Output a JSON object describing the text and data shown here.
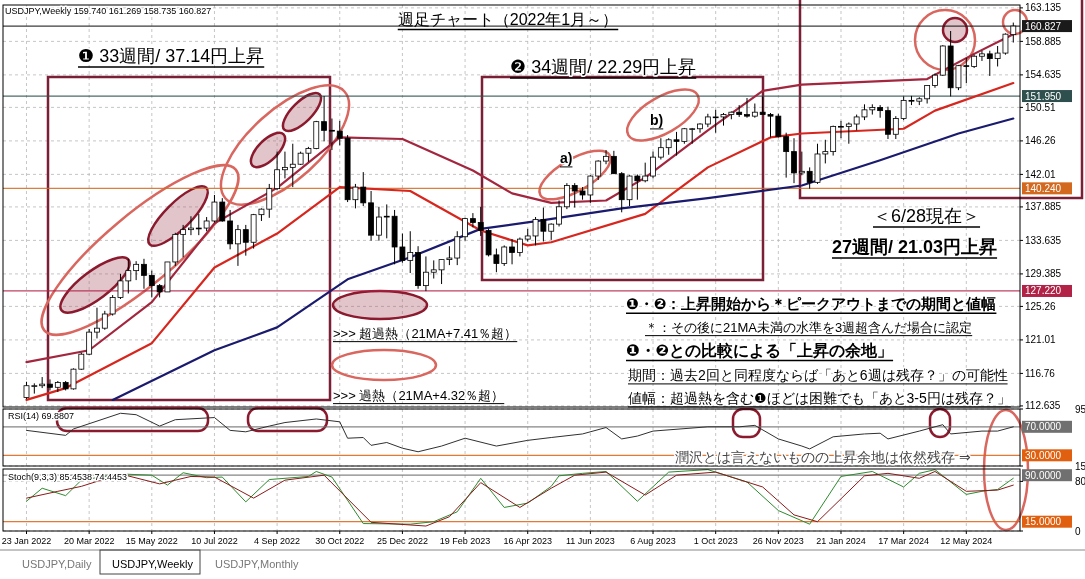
{
  "chart_data": [
    {
      "type": "candlestick",
      "title": "週足チャート（2022年1月～）",
      "grid": true,
      "tick_labels": "y",
      "xlim": [
        "2022-01-02",
        "2024-06-29"
      ],
      "xticks": [
        {
          "value": "2022-01-23",
          "label": null
        },
        {
          "value": "2022-03-20",
          "label": null
        },
        {
          "value": "2022-05-15",
          "label": null
        },
        {
          "value": "2022-07-10",
          "label": null
        },
        {
          "value": "2022-09-04",
          "label": null
        },
        {
          "value": "2022-10-30",
          "label": null
        },
        {
          "value": "2022-12-25",
          "label": null
        },
        {
          "value": "2023-02-19",
          "label": null
        },
        {
          "value": "2023-04-16",
          "label": null
        },
        {
          "value": "2023-06-11",
          "label": null
        },
        {
          "value": "2023-08-06",
          "label": null
        },
        {
          "value": "2023-10-01",
          "label": null
        },
        {
          "value": "2023-11-26",
          "label": null
        },
        {
          "value": "2024-01-21",
          "label": null
        },
        {
          "value": "2024-03-17",
          "label": null
        },
        {
          "value": "2024-05-12",
          "label": null
        }
      ],
      "ylim": [
        112.5,
        163.5
      ],
      "yticks": [
        163.135,
        158.885,
        154.635,
        150.51,
        146.26,
        142.01,
        137.885,
        133.635,
        129.385,
        125.26,
        121.01,
        116.76,
        112.635
      ],
      "ref_lines": [
        {
          "axis": "y",
          "value": 160.827,
          "label": "160.827",
          "color": "#1a1a1a"
        },
        {
          "axis": "y",
          "value": 151.95,
          "label": "151.950",
          "color": "#2f4f4f"
        },
        {
          "axis": "y",
          "value": 140.24,
          "label": "140.240",
          "color": "#d2691e"
        },
        {
          "axis": "y",
          "value": 127.22,
          "label": "127.220",
          "color": "#b22247"
        }
      ],
      "x": [
        "2022-01-23",
        "2022-01-30",
        "2022-02-06",
        "2022-02-13",
        "2022-02-20",
        "2022-02-27",
        "2022-03-06",
        "2022-03-13",
        "2022-03-20",
        "2022-03-27",
        "2022-04-03",
        "2022-04-10",
        "2022-04-17",
        "2022-04-24",
        "2022-05-01",
        "2022-05-08",
        "2022-05-15",
        "2022-05-22",
        "2022-05-29",
        "2022-06-05",
        "2022-06-12",
        "2022-06-19",
        "2022-06-26",
        "2022-07-03",
        "2022-07-10",
        "2022-07-17",
        "2022-07-24",
        "2022-07-31",
        "2022-08-07",
        "2022-08-14",
        "2022-08-21",
        "2022-08-28",
        "2022-09-04",
        "2022-09-11",
        "2022-09-18",
        "2022-09-25",
        "2022-10-02",
        "2022-10-09",
        "2022-10-16",
        "2022-10-23",
        "2022-10-30",
        "2022-11-06",
        "2022-11-13",
        "2022-11-20",
        "2022-11-27",
        "2022-12-04",
        "2022-12-11",
        "2022-12-18",
        "2022-12-25",
        "2023-01-01",
        "2023-01-08",
        "2023-01-15",
        "2023-01-22",
        "2023-01-29",
        "2023-02-05",
        "2023-02-12",
        "2023-02-19",
        "2023-02-26",
        "2023-03-05",
        "2023-03-12",
        "2023-03-19",
        "2023-03-26",
        "2023-04-02",
        "2023-04-09",
        "2023-04-16",
        "2023-04-23",
        "2023-04-30",
        "2023-05-07",
        "2023-05-14",
        "2023-05-21",
        "2023-05-28",
        "2023-06-04",
        "2023-06-11",
        "2023-06-18",
        "2023-06-25",
        "2023-07-02",
        "2023-07-09",
        "2023-07-16",
        "2023-07-23",
        "2023-07-30",
        "2023-08-06",
        "2023-08-13",
        "2023-08-20",
        "2023-08-27",
        "2023-09-03",
        "2023-09-10",
        "2023-09-17",
        "2023-09-24",
        "2023-10-01",
        "2023-10-08",
        "2023-10-15",
        "2023-10-22",
        "2023-10-29",
        "2023-11-05",
        "2023-11-12",
        "2023-11-19",
        "2023-11-26",
        "2023-12-03",
        "2023-12-10",
        "2023-12-17",
        "2023-12-24",
        "2023-12-31",
        "2024-01-07",
        "2024-01-14",
        "2024-01-21",
        "2024-01-28",
        "2024-02-04",
        "2024-02-11",
        "2024-02-18",
        "2024-02-25",
        "2024-03-03",
        "2024-03-10",
        "2024-03-17",
        "2024-03-24",
        "2024-03-31",
        "2024-04-07",
        "2024-04-14",
        "2024-04-21",
        "2024-04-28",
        "2024-05-05",
        "2024-05-12",
        "2024-05-19",
        "2024-05-26",
        "2024-06-02",
        "2024-06-09",
        "2024-06-16",
        "2024-06-23"
      ],
      "ohlc": [
        [
          113.7,
          115.7,
          113.5,
          115.2
        ],
        [
          115.2,
          115.5,
          114.2,
          115.2
        ],
        [
          115.2,
          116.3,
          114.9,
          115.4
        ],
        [
          115.4,
          116.0,
          114.6,
          115.0
        ],
        [
          115.0,
          115.8,
          114.4,
          115.6
        ],
        [
          115.6,
          115.8,
          114.6,
          114.8
        ],
        [
          114.8,
          117.4,
          114.7,
          117.3
        ],
        [
          117.3,
          119.4,
          117.2,
          119.2
        ],
        [
          119.2,
          122.4,
          119.1,
          122.0
        ],
        [
          122.0,
          125.1,
          121.2,
          122.5
        ],
        [
          122.5,
          124.7,
          122.3,
          124.3
        ],
        [
          124.3,
          126.7,
          124.1,
          126.4
        ],
        [
          126.4,
          129.4,
          126.2,
          128.5
        ],
        [
          128.5,
          131.3,
          126.9,
          129.8
        ],
        [
          129.8,
          131.0,
          128.6,
          130.6
        ],
        [
          130.6,
          131.3,
          127.5,
          129.2
        ],
        [
          129.2,
          129.8,
          126.4,
          127.9
        ],
        [
          127.9,
          128.1,
          126.4,
          127.1
        ],
        [
          127.1,
          130.9,
          127.1,
          130.9
        ],
        [
          130.9,
          134.6,
          130.4,
          134.4
        ],
        [
          134.4,
          135.6,
          131.5,
          135.0
        ],
        [
          135.0,
          136.7,
          134.3,
          135.2
        ],
        [
          135.2,
          137.0,
          134.3,
          135.2
        ],
        [
          135.2,
          136.6,
          134.8,
          136.1
        ],
        [
          136.1,
          139.4,
          135.9,
          138.5
        ],
        [
          138.5,
          139.0,
          136.0,
          136.1
        ],
        [
          136.1,
          137.5,
          132.5,
          133.2
        ],
        [
          133.2,
          135.6,
          130.4,
          135.0
        ],
        [
          135.0,
          135.6,
          131.7,
          133.4
        ],
        [
          133.4,
          137.0,
          132.6,
          136.9
        ],
        [
          136.9,
          137.7,
          136.1,
          137.6
        ],
        [
          137.6,
          140.8,
          136.5,
          140.2
        ],
        [
          140.2,
          144.9,
          140.0,
          142.6
        ],
        [
          142.6,
          144.9,
          141.5,
          142.9
        ],
        [
          142.9,
          145.9,
          140.4,
          143.3
        ],
        [
          143.3,
          144.9,
          143.2,
          144.7
        ],
        [
          144.7,
          145.5,
          143.6,
          145.3
        ],
        [
          145.3,
          148.8,
          145.2,
          148.7
        ],
        [
          148.7,
          151.95,
          146.2,
          147.6
        ],
        [
          147.6,
          149.1,
          145.1,
          147.5
        ],
        [
          147.5,
          148.8,
          145.7,
          146.6
        ],
        [
          146.6,
          147.0,
          138.5,
          138.8
        ],
        [
          138.8,
          140.8,
          137.7,
          140.4
        ],
        [
          140.4,
          142.3,
          138.0,
          138.4
        ],
        [
          138.4,
          139.9,
          133.6,
          134.3
        ],
        [
          134.3,
          137.9,
          133.6,
          136.6
        ],
        [
          136.6,
          138.2,
          133.9,
          136.7
        ],
        [
          136.7,
          137.5,
          130.6,
          132.8
        ],
        [
          132.8,
          134.5,
          130.8,
          131.1
        ],
        [
          131.1,
          134.8,
          129.5,
          132.1
        ],
        [
          132.1,
          132.9,
          127.5,
          127.9
        ],
        [
          127.9,
          131.6,
          127.2,
          129.6
        ],
        [
          129.6,
          131.1,
          128.8,
          129.9
        ],
        [
          129.9,
          131.2,
          128.1,
          131.2
        ],
        [
          131.2,
          132.9,
          130.5,
          131.4
        ],
        [
          131.4,
          134.8,
          130.5,
          134.1
        ],
        [
          134.1,
          136.5,
          133.6,
          136.4
        ],
        [
          136.4,
          137.1,
          135.3,
          135.9
        ],
        [
          135.9,
          137.9,
          134.2,
          134.9
        ],
        [
          134.9,
          135.1,
          131.6,
          131.8
        ],
        [
          131.8,
          132.6,
          129.6,
          130.7
        ],
        [
          130.7,
          133.0,
          130.4,
          132.8
        ],
        [
          132.8,
          133.8,
          130.6,
          132.1
        ],
        [
          132.1,
          134.0,
          131.6,
          133.8
        ],
        [
          133.8,
          135.1,
          133.5,
          134.2
        ],
        [
          134.2,
          136.6,
          133.0,
          136.3
        ],
        [
          136.3,
          137.8,
          133.5,
          134.8
        ],
        [
          134.8,
          135.8,
          133.7,
          135.7
        ],
        [
          135.7,
          138.7,
          135.4,
          137.9
        ],
        [
          137.9,
          140.9,
          137.6,
          140.6
        ],
        [
          140.6,
          140.9,
          137.8,
          139.9
        ],
        [
          139.9,
          140.4,
          138.8,
          139.4
        ],
        [
          139.4,
          141.9,
          138.4,
          141.8
        ],
        [
          141.8,
          143.8,
          141.3,
          143.7
        ],
        [
          143.7,
          145.1,
          143.3,
          144.3
        ],
        [
          144.3,
          145.0,
          142.1,
          142.1
        ],
        [
          142.1,
          142.3,
          137.2,
          138.8
        ],
        [
          138.8,
          141.9,
          138.0,
          141.8
        ],
        [
          141.8,
          142.0,
          138.8,
          141.2
        ],
        [
          141.2,
          143.5,
          141.0,
          141.8
        ],
        [
          141.8,
          144.9,
          141.5,
          144.2
        ],
        [
          144.2,
          146.6,
          143.9,
          145.4
        ],
        [
          145.4,
          146.6,
          144.5,
          146.4
        ],
        [
          146.4,
          147.4,
          144.4,
          146.2
        ],
        [
          146.2,
          147.9,
          145.9,
          147.8
        ],
        [
          147.8,
          147.9,
          145.9,
          147.8
        ],
        [
          147.8,
          148.5,
          147.3,
          148.4
        ],
        [
          148.4,
          149.7,
          148.0,
          149.3
        ],
        [
          149.3,
          150.2,
          147.3,
          149.3
        ],
        [
          149.3,
          149.8,
          148.2,
          149.6
        ],
        [
          149.6,
          150.0,
          149.0,
          149.9
        ],
        [
          149.9,
          150.8,
          149.3,
          149.6
        ],
        [
          149.6,
          151.7,
          149.2,
          149.4
        ],
        [
          149.4,
          151.0,
          149.2,
          149.9
        ],
        [
          149.9,
          151.9,
          149.6,
          149.6
        ],
        [
          149.6,
          149.8,
          146.7,
          149.4
        ],
        [
          149.4,
          149.7,
          146.7,
          146.8
        ],
        [
          146.8,
          147.3,
          141.6,
          144.9
        ],
        [
          144.9,
          146.6,
          140.9,
          142.2
        ],
        [
          142.2,
          144.9,
          141.9,
          142.4
        ],
        [
          142.4,
          142.9,
          140.2,
          141.0
        ],
        [
          141.0,
          145.9,
          140.8,
          144.6
        ],
        [
          144.6,
          146.4,
          143.4,
          144.9
        ],
        [
          144.9,
          148.2,
          144.4,
          148.1
        ],
        [
          148.1,
          148.8,
          146.6,
          148.1
        ],
        [
          148.1,
          148.6,
          145.9,
          148.4
        ],
        [
          148.4,
          149.6,
          147.6,
          149.3
        ],
        [
          149.3,
          150.9,
          148.9,
          150.2
        ],
        [
          150.2,
          150.9,
          149.6,
          150.5
        ],
        [
          150.5,
          150.8,
          149.2,
          150.1
        ],
        [
          150.1,
          150.6,
          146.5,
          147.1
        ],
        [
          147.1,
          149.4,
          146.5,
          149.1
        ],
        [
          149.1,
          151.9,
          148.9,
          151.4
        ],
        [
          151.4,
          151.97,
          150.8,
          151.3
        ],
        [
          151.3,
          151.8,
          150.8,
          151.6
        ],
        [
          151.6,
          153.3,
          151.0,
          153.3
        ],
        [
          153.3,
          154.8,
          153.0,
          154.6
        ],
        [
          154.6,
          158.4,
          154.5,
          158.3
        ],
        [
          158.3,
          160.2,
          151.9,
          153.0
        ],
        [
          153.0,
          155.9,
          152.7,
          155.8
        ],
        [
          155.8,
          156.8,
          153.6,
          155.7
        ],
        [
          155.7,
          157.2,
          155.5,
          157.0
        ],
        [
          157.0,
          157.7,
          156.4,
          157.3
        ],
        [
          157.3,
          157.7,
          154.5,
          156.7
        ],
        [
          156.7,
          158.3,
          155.7,
          157.4
        ],
        [
          157.4,
          159.9,
          157.2,
          159.8
        ],
        [
          159.74,
          161.269,
          158.735,
          160.827
        ]
      ],
      "series": [
        {
          "type": "line",
          "color": "#a3263f",
          "x": [
            "2022-01-23",
            "2022-03-20",
            "2022-05-15",
            "2022-07-10",
            "2022-09-04",
            "2022-10-30",
            "2022-12-25",
            "2023-02-26",
            "2023-04-02",
            "2023-05-07",
            "2023-06-25",
            "2023-07-30",
            "2023-09-24",
            "2023-11-12",
            "2023-12-17",
            "2024-04-07",
            "2024-05-19",
            "2024-06-23"
          ],
          "values": [
            118.2,
            119.7,
            125.8,
            135.8,
            140.3,
            146.7,
            146.5,
            142.5,
            139.6,
            138.4,
            138.7,
            141.6,
            147.6,
            152.6,
            153.4,
            154.1,
            157.3,
            159.8
          ]
        },
        {
          "type": "line",
          "color": "#d7261e",
          "x": [
            "2022-01-23",
            "2022-02-27",
            "2022-05-15",
            "2022-07-10",
            "2022-09-04",
            "2022-10-30",
            "2023-01-01",
            "2023-03-05",
            "2023-04-16",
            "2023-05-07",
            "2023-07-30",
            "2023-09-24",
            "2023-11-19",
            "2023-12-17",
            "2024-03-17",
            "2024-04-14",
            "2024-06-23"
          ],
          "values": [
            113.4,
            114.9,
            120.6,
            130.2,
            134.5,
            140.4,
            139.9,
            134.9,
            133.0,
            133.4,
            137.0,
            142.9,
            146.7,
            147.2,
            147.8,
            150.1,
            153.6
          ]
        },
        {
          "type": "line",
          "color": "#1a1a6e",
          "x": [
            "2022-04-10",
            "2022-07-10",
            "2022-09-04",
            "2022-11-06",
            "2023-01-01",
            "2023-03-05",
            "2023-04-30",
            "2023-07-09",
            "2023-09-24",
            "2023-12-17",
            "2024-02-25",
            "2024-05-05",
            "2024-06-23"
          ],
          "values": [
            113.4,
            119.7,
            122.6,
            128.7,
            131.5,
            135.1,
            136.2,
            137.7,
            139.0,
            140.6,
            143.8,
            147.2,
            149.1
          ]
        }
      ],
      "annotations": [
        "USDJPY,Weekly  159.740 161.269 158.735 160.827",
        "❶ 33週間/ 37.14円上昇",
        "❷ 34週間/ 22.29円上昇",
        "a)",
        "b)",
        "＜6/28現在＞",
        "27週間/ 21.03円上昇",
        ">>> 超過熱（21MA+7.41％超）",
        ">>> 過熱（21MA+4.32％超）",
        "❶・❷：上昇開始から＊ピークアウトまでの期間と値幅",
        "＊：その後に21MA未満の水準を3週超含んだ場合に認定",
        "❶・❷との比較による「上昇の余地」",
        "期間：過去2回と同程度ならば「あと6週は残存？」の可能性",
        "値幅：超過熱を含む❶ほどは困難でも「あと3-5円は残存？」"
      ]
    },
    {
      "type": "line",
      "grid": true,
      "tick_labels": "y",
      "xlim": [
        "2022-01-02",
        "2024-06-29"
      ],
      "xticks": [
        {
          "value": "2022-01-23",
          "label": null
        },
        {
          "value": "2022-03-20",
          "label": null
        },
        {
          "value": "2022-05-15",
          "label": null
        },
        {
          "value": "2022-07-10",
          "label": null
        },
        {
          "value": "2022-09-04",
          "label": null
        },
        {
          "value": "2022-10-30",
          "label": null
        },
        {
          "value": "2022-12-25",
          "label": null
        },
        {
          "value": "2023-02-19",
          "label": null
        },
        {
          "value": "2023-04-16",
          "label": null
        },
        {
          "value": "2023-06-11",
          "label": null
        },
        {
          "value": "2023-08-06",
          "label": null
        },
        {
          "value": "2023-10-01",
          "label": null
        },
        {
          "value": "2023-11-26",
          "label": null
        },
        {
          "value": "2024-01-21",
          "label": null
        },
        {
          "value": "2024-03-17",
          "label": null
        },
        {
          "value": "2024-05-12",
          "label": null
        }
      ],
      "ylim": [
        15,
        95
      ],
      "yticks": [
        95,
        15
      ],
      "ref_lines": [
        {
          "axis": "y",
          "value": 70,
          "label": "70.0000",
          "color": "#707070"
        },
        {
          "axis": "y",
          "value": 30,
          "label": "30.0000",
          "color": "#e06010"
        }
      ],
      "series": [
        {
          "color": "#303030",
          "x": [
            "2022-01-23",
            "2022-02-27",
            "2022-03-06",
            "2022-04-17",
            "2022-05-01",
            "2022-05-22",
            "2022-06-05",
            "2022-07-10",
            "2022-07-24",
            "2022-08-07",
            "2022-08-28",
            "2022-09-11",
            "2022-10-09",
            "2022-10-30",
            "2022-11-06",
            "2022-11-20",
            "2022-11-27",
            "2022-12-11",
            "2022-12-25",
            "2023-01-08",
            "2023-01-29",
            "2023-02-19",
            "2023-03-19",
            "2023-04-16",
            "2023-05-07",
            "2023-06-04",
            "2023-06-25",
            "2023-07-09",
            "2023-07-23",
            "2023-08-06",
            "2023-09-24",
            "2023-10-22",
            "2023-11-05",
            "2023-11-26",
            "2023-12-17",
            "2023-12-24",
            "2024-01-14",
            "2024-02-11",
            "2024-02-25",
            "2024-03-03",
            "2024-03-31",
            "2024-04-21",
            "2024-04-28",
            "2024-05-26",
            "2024-06-09",
            "2024-06-23"
          ],
          "values": [
            65,
            58,
            67,
            89,
            87,
            71,
            80,
            83,
            65,
            63,
            71,
            76,
            81,
            77,
            54,
            55,
            44,
            48,
            40,
            35,
            43,
            54,
            43,
            51,
            55,
            60,
            69,
            53,
            57,
            64,
            70,
            70,
            72,
            53,
            43,
            39,
            56,
            60,
            61,
            53,
            64,
            73,
            60,
            64,
            64,
            70
          ]
        }
      ],
      "annotations": [
        "RSI(14) 69.8807",
        "潤沢とは言えないものの上昇余地は依然残存 ⇒"
      ]
    },
    {
      "type": "line",
      "grid": true,
      "xlim": [
        "2022-01-02",
        "2024-06-29"
      ],
      "xticks": [
        {
          "value": "2022-01-23",
          "label": "23 Jan 2022"
        },
        {
          "value": "2022-03-20",
          "label": "20 Mar 2022"
        },
        {
          "value": "2022-05-15",
          "label": "15 May 2022"
        },
        {
          "value": "2022-07-10",
          "label": "10 Jul 2022"
        },
        {
          "value": "2022-09-04",
          "label": "4 Sep 2022"
        },
        {
          "value": "2022-10-30",
          "label": "30 Oct 2022"
        },
        {
          "value": "2022-12-25",
          "label": "25 Dec 2022"
        },
        {
          "value": "2023-02-19",
          "label": "19 Feb 2023"
        },
        {
          "value": "2023-04-16",
          "label": "16 Apr 2023"
        },
        {
          "value": "2023-06-11",
          "label": "11 Jun 2023"
        },
        {
          "value": "2023-08-06",
          "label": "6 Aug 2023"
        },
        {
          "value": "2023-10-01",
          "label": "1 Oct 2023"
        },
        {
          "value": "2023-11-26",
          "label": "26 Nov 2023"
        },
        {
          "value": "2024-01-21",
          "label": "21 Jan 2024"
        },
        {
          "value": "2024-03-17",
          "label": "17 Mar 2024"
        },
        {
          "value": "2024-05-12",
          "label": "12 May 2024"
        }
      ],
      "ylim": [
        0,
        100
      ],
      "yticks": [
        80,
        0
      ],
      "ref_lines": [
        {
          "axis": "y",
          "value": 90,
          "label": "90.0000",
          "color": "#707070"
        },
        {
          "axis": "y",
          "value": 15,
          "label": "15.0000",
          "color": "#e06010"
        }
      ],
      "series": [
        {
          "color": "#2e8b2e",
          "x": [
            "2022-01-23",
            "2022-02-06",
            "2022-02-27",
            "2022-03-13",
            "2022-04-17",
            "2022-05-15",
            "2022-05-29",
            "2022-06-12",
            "2022-07-03",
            "2022-07-17",
            "2022-08-07",
            "2022-08-28",
            "2022-10-02",
            "2022-10-09",
            "2022-10-23",
            "2022-11-20",
            "2023-01-01",
            "2023-01-22",
            "2023-02-12",
            "2023-03-05",
            "2023-03-26",
            "2023-04-16",
            "2023-05-07",
            "2023-05-14",
            "2023-06-04",
            "2023-06-25",
            "2023-07-23",
            "2023-08-20",
            "2023-09-24",
            "2023-10-29",
            "2023-11-26",
            "2023-12-24",
            "2024-01-21",
            "2024-02-18",
            "2024-03-17",
            "2024-03-31",
            "2024-04-14",
            "2024-05-12",
            "2024-05-26",
            "2024-06-09",
            "2024-06-23"
          ],
          "values": [
            48,
            69,
            57,
            82,
            92,
            90,
            74,
            94,
            86,
            87,
            47,
            83,
            88,
            96,
            87,
            12,
            11,
            15,
            31,
            85,
            38,
            45,
            72,
            89,
            93,
            96,
            48,
            95,
            99,
            79,
            33,
            11,
            88,
            96,
            71,
            93,
            99,
            59,
            64,
            67,
            85
          ]
        },
        {
          "color": "#8b1a1a",
          "x": [
            "2022-01-23",
            "2022-02-20",
            "2022-03-13",
            "2022-04-17",
            "2022-05-22",
            "2022-06-19",
            "2022-07-10",
            "2022-08-14",
            "2022-09-11",
            "2022-10-16",
            "2022-11-27",
            "2023-01-15",
            "2023-02-05",
            "2023-03-05",
            "2023-04-09",
            "2023-05-07",
            "2023-05-28",
            "2023-06-25",
            "2023-07-30",
            "2023-08-27",
            "2023-10-01",
            "2023-11-12",
            "2023-12-10",
            "2023-12-31",
            "2024-02-11",
            "2024-03-03",
            "2024-03-31",
            "2024-04-14",
            "2024-05-12",
            "2024-06-09",
            "2024-06-23"
          ],
          "values": [
            53,
            64,
            72,
            92,
            76,
            88,
            87,
            53,
            82,
            90,
            14,
            8,
            23,
            78,
            38,
            69,
            90,
            95,
            58,
            90,
            95,
            71,
            26,
            15,
            89,
            93,
            85,
            96,
            64,
            66,
            74
          ]
        }
      ],
      "annotations": [
        "Stoch(9,3,3) 85.4538 74.4453",
        "USDJPY,Daily",
        "USDJPY,Weekly",
        "USDJPY,Monthly"
      ]
    }
  ]
}
